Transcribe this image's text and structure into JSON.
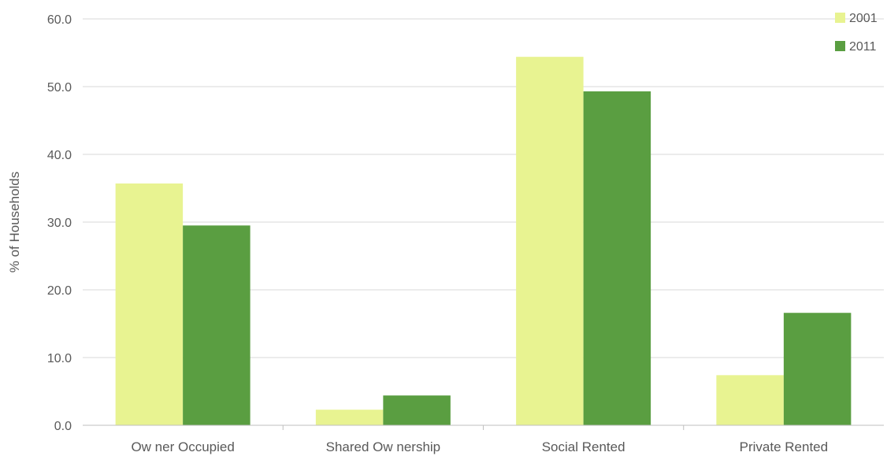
{
  "chart_data": {
    "type": "bar",
    "categories": [
      "Ow ner Occupied",
      "Shared Ow nership",
      "Social Rented",
      "Private Rented"
    ],
    "series": [
      {
        "name": "2001",
        "values": [
          35.7,
          2.3,
          54.4,
          7.4
        ],
        "color": "#e8f391"
      },
      {
        "name": "2011",
        "values": [
          29.5,
          4.4,
          49.3,
          16.6
        ],
        "color": "#5a9e41"
      }
    ],
    "ylabel": "% of Households",
    "ylim": [
      0,
      60
    ],
    "yticks": [
      "0.0",
      "10.0",
      "20.0",
      "30.0",
      "40.0",
      "50.0",
      "60.0"
    ],
    "grid": true,
    "legend_position": "top-right"
  }
}
